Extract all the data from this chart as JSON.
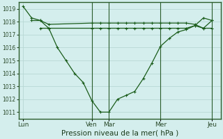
{
  "background_color": "#d4eeed",
  "grid_color": "#b8d8d4",
  "line_color": "#1a5c1a",
  "marker_color": "#1a5c1a",
  "xlabel": "Pression niveau de la mer( hPa )",
  "ylim": [
    1010.5,
    1019.5
  ],
  "yticks": [
    1011,
    1012,
    1013,
    1014,
    1015,
    1016,
    1017,
    1018,
    1019
  ],
  "day_labels": [
    "Lun",
    "Ven",
    "Mar",
    "Mer",
    "Jeu"
  ],
  "day_positions": [
    0,
    48,
    60,
    96,
    132
  ],
  "xlim": [
    -3,
    138
  ],
  "vline_positions": [
    48,
    60,
    96,
    132
  ],
  "series1_x": [
    0,
    6,
    12,
    18,
    24,
    30,
    36,
    42,
    48,
    54,
    60,
    66,
    72,
    78,
    84,
    90,
    96,
    102,
    108,
    114,
    120,
    126,
    132
  ],
  "series1_y": [
    1019.2,
    1018.3,
    1018.1,
    1017.5,
    1016.0,
    1015.0,
    1014.0,
    1013.3,
    1011.9,
    1011.0,
    1011.0,
    1012.0,
    1012.3,
    1012.6,
    1013.6,
    1014.8,
    1016.1,
    1016.7,
    1017.2,
    1017.4,
    1017.7,
    1018.3,
    1018.1
  ],
  "series2_x": [
    6,
    12,
    18,
    48,
    54,
    60,
    66,
    72,
    78,
    84,
    90,
    96,
    102,
    108,
    114,
    120,
    126,
    132
  ],
  "series2_y": [
    1018.1,
    1018.1,
    1017.8,
    1017.9,
    1017.9,
    1017.9,
    1017.9,
    1017.9,
    1017.9,
    1017.9,
    1017.9,
    1017.9,
    1017.9,
    1017.9,
    1017.9,
    1017.8,
    1017.5,
    1018.1
  ],
  "series3_x": [
    12,
    18,
    48,
    54,
    60,
    66,
    72,
    78,
    84,
    90,
    96,
    102,
    108,
    114,
    120,
    126,
    132
  ],
  "series3_y": [
    1017.5,
    1017.5,
    1017.5,
    1017.5,
    1017.5,
    1017.5,
    1017.5,
    1017.5,
    1017.5,
    1017.5,
    1017.5,
    1017.5,
    1017.5,
    1017.5,
    1017.7,
    1017.5,
    1017.5
  ],
  "vline_color": "#2a5c2a",
  "border_color": "#2a5c2a"
}
